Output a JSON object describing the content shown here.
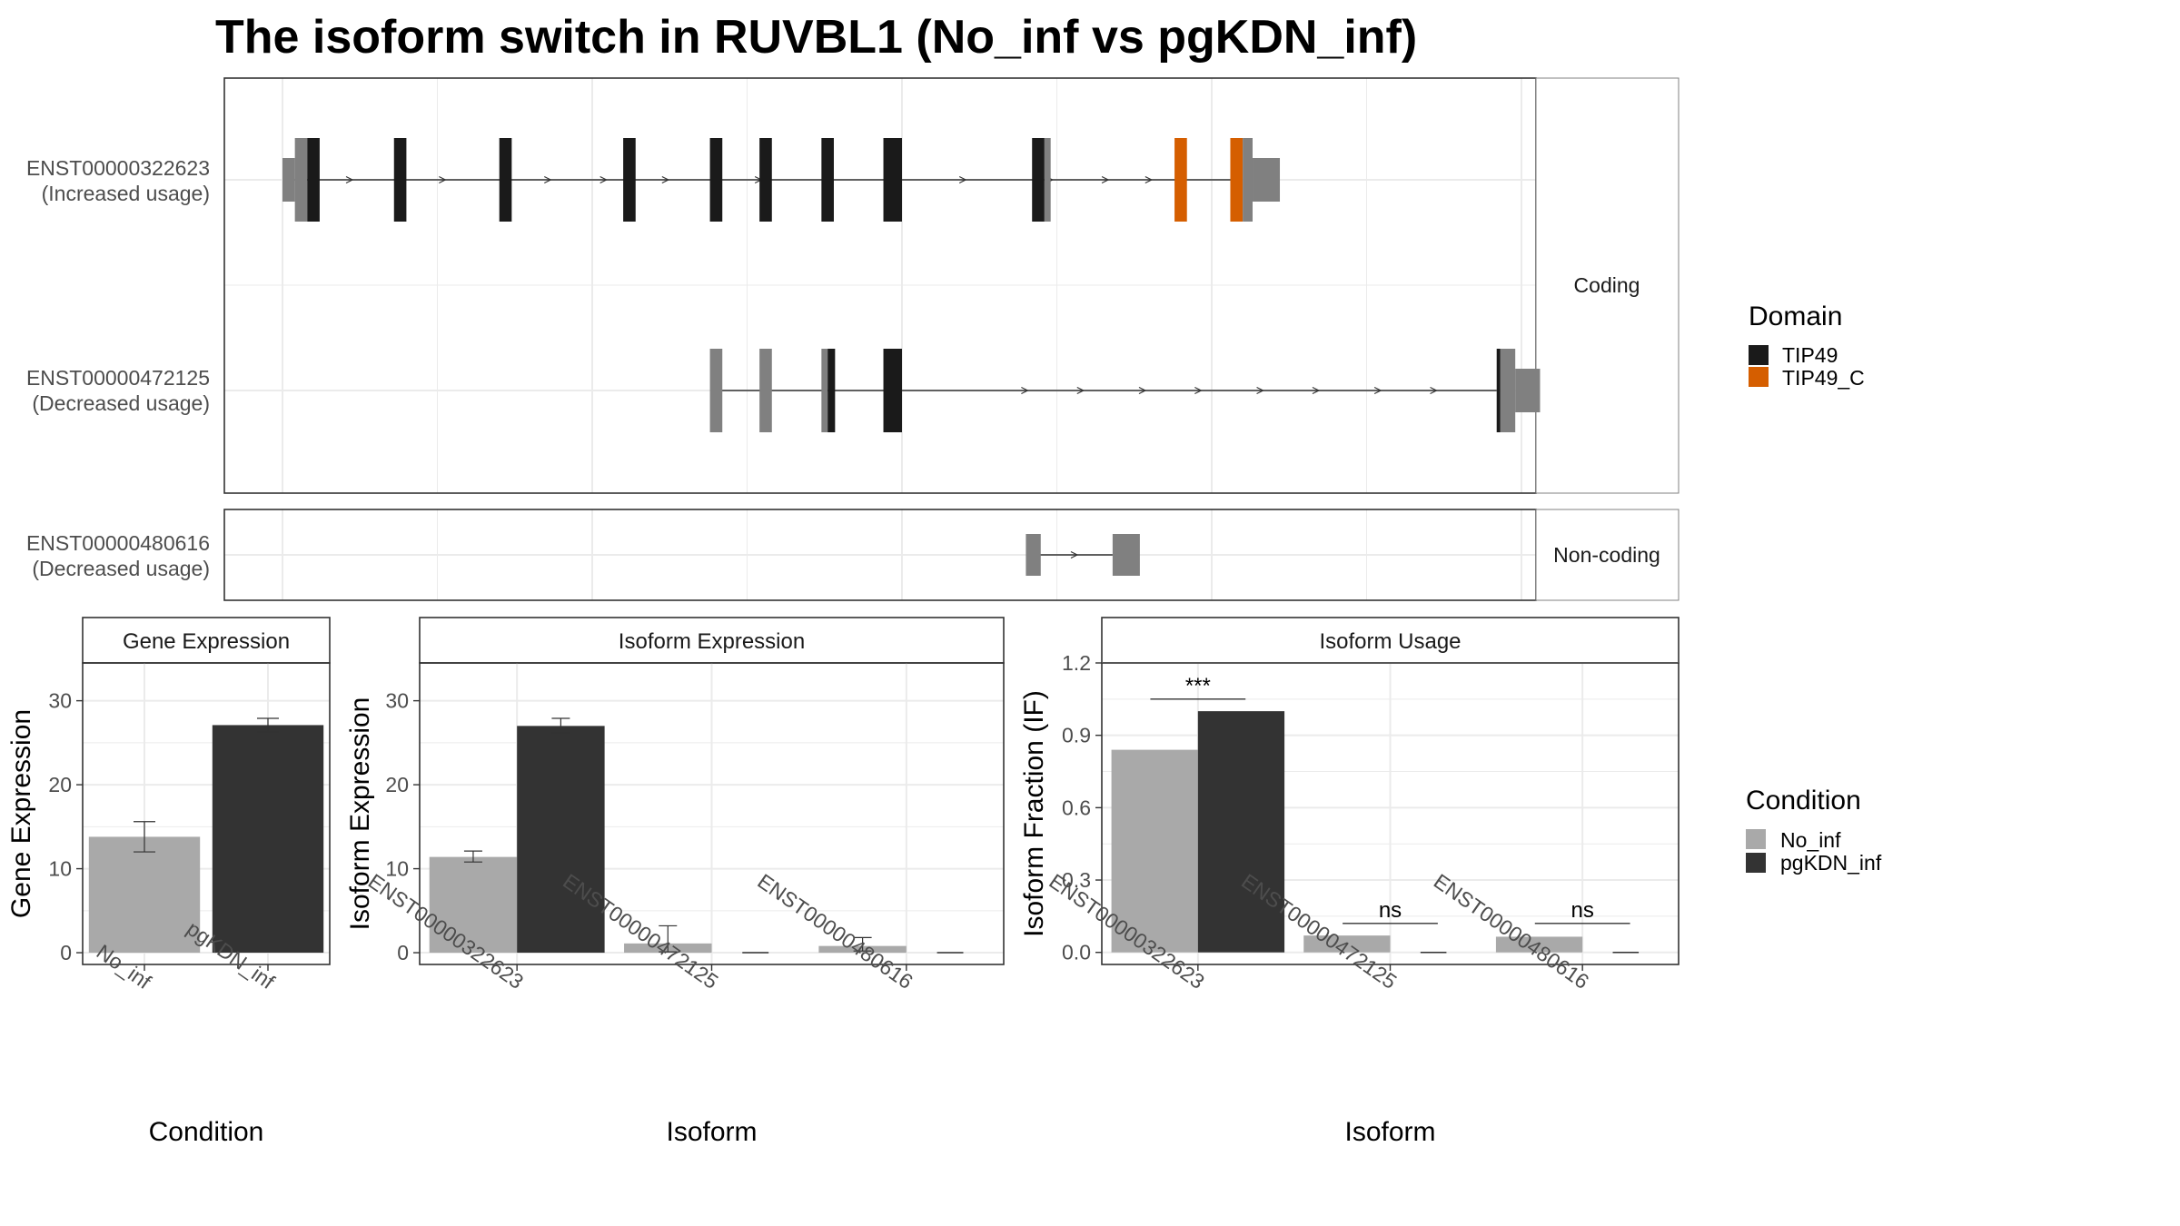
{
  "title": "The isoform switch in RUVBL1 (No_inf vs pgKDN_inf)",
  "colors": {
    "tip49": "#1a1a1a",
    "tip49_c": "#d55e00",
    "utr": "#808080",
    "no_inf": "#a9a9a9",
    "pgkdn_inf": "#333333",
    "grid": "#ebebeb",
    "strip_bg": "#ffffff",
    "panel_border": "#333333"
  },
  "structure": {
    "x_domain": [
      0,
      100
    ],
    "facets": [
      "Coding",
      "Non-coding"
    ],
    "transcripts": [
      {
        "id": "ENST00000322623",
        "usage": "(Increased usage)",
        "facet": "Coding",
        "intron": [
          1,
          77
        ],
        "arrows": [
          5.5,
          13,
          21.5,
          26,
          31,
          38.5,
          55,
          62,
          66.5,
          70
        ],
        "exons": [
          {
            "start": 0,
            "end": 1,
            "type": "utr5"
          },
          {
            "start": 1,
            "end": 2,
            "type": "utr"
          },
          {
            "start": 2,
            "end": 3,
            "type": "tip49"
          },
          {
            "start": 9,
            "end": 10,
            "type": "tip49"
          },
          {
            "start": 17.5,
            "end": 18.5,
            "type": "tip49"
          },
          {
            "start": 27.5,
            "end": 28.5,
            "type": "tip49"
          },
          {
            "start": 34.5,
            "end": 35.5,
            "type": "tip49"
          },
          {
            "start": 38.5,
            "end": 39.5,
            "type": "tip49"
          },
          {
            "start": 43.5,
            "end": 44.5,
            "type": "tip49"
          },
          {
            "start": 48.5,
            "end": 50,
            "type": "tip49"
          },
          {
            "start": 60.5,
            "end": 61.5,
            "type": "tip49"
          },
          {
            "start": 61.5,
            "end": 62,
            "type": "utr"
          },
          {
            "start": 72,
            "end": 73,
            "type": "tip49_c"
          },
          {
            "start": 76.5,
            "end": 77.5,
            "type": "tip49_c"
          },
          {
            "start": 77.5,
            "end": 78.3,
            "type": "utr"
          },
          {
            "start": 78.3,
            "end": 80.5,
            "type": "utr3"
          }
        ]
      },
      {
        "id": "ENST00000472125",
        "usage": "(Decreased usage)",
        "facet": "Coding",
        "intron": [
          35,
          98
        ],
        "arrows": [
          60,
          64.5,
          69.5,
          74,
          79,
          83.5,
          88.5,
          93
        ],
        "exons": [
          {
            "start": 34.5,
            "end": 35.5,
            "type": "utr"
          },
          {
            "start": 38.5,
            "end": 39.5,
            "type": "utr"
          },
          {
            "start": 43.5,
            "end": 44,
            "type": "utr"
          },
          {
            "start": 44,
            "end": 44.6,
            "type": "tip49"
          },
          {
            "start": 48.5,
            "end": 50,
            "type": "tip49"
          },
          {
            "start": 98,
            "end": 98.3,
            "type": "tip49"
          },
          {
            "start": 98.3,
            "end": 99.5,
            "type": "utr"
          },
          {
            "start": 99.5,
            "end": 101.5,
            "type": "utr3"
          }
        ]
      },
      {
        "id": "ENST00000480616",
        "usage": "(Decreased usage)",
        "facet": "Non-coding",
        "intron": [
          60.5,
          67
        ],
        "arrows": [
          64
        ],
        "exons": [
          {
            "start": 60,
            "end": 61.2,
            "type": "utr"
          },
          {
            "start": 67,
            "end": 69.2,
            "type": "utr"
          }
        ]
      }
    ]
  },
  "legend_domain": {
    "title": "Domain",
    "entries": [
      {
        "label": "TIP49",
        "color": "#1a1a1a"
      },
      {
        "label": "TIP49_C",
        "color": "#d55e00"
      }
    ]
  },
  "legend_condition": {
    "title": "Condition",
    "entries": [
      {
        "label": "No_inf",
        "color": "#a9a9a9"
      },
      {
        "label": "pgKDN_inf",
        "color": "#333333"
      }
    ]
  },
  "chart_data": [
    {
      "type": "bar",
      "strip": "Gene Expression",
      "xlabel": "Condition",
      "ylabel": "Gene Expression",
      "ylim": [
        -1.4,
        34.5
      ],
      "yticks": [
        0,
        10,
        20,
        30
      ],
      "categories": [
        "No_inf",
        "pgKDN_inf"
      ],
      "values": [
        13.8,
        27.1
      ],
      "errors": [
        [
          12.0,
          15.6
        ],
        [
          26.3,
          27.9
        ]
      ]
    },
    {
      "type": "bar",
      "strip": "Isoform Expression",
      "xlabel": "Isoform",
      "ylabel": "Isoform Expression",
      "ylim": [
        -1.4,
        34.5
      ],
      "yticks": [
        0,
        10,
        20,
        30
      ],
      "categories": [
        "ENST00000322623",
        "ENST00000472125",
        "ENST00000480616"
      ],
      "series": [
        {
          "name": "No_inf",
          "values": [
            11.4,
            1.1,
            0.8
          ],
          "errors": [
            [
              10.8,
              12.1
            ],
            [
              0.1,
              3.2
            ],
            [
              0.2,
              1.8
            ]
          ]
        },
        {
          "name": "pgKDN_inf",
          "values": [
            27.0,
            0.0,
            0.0
          ],
          "errors": [
            [
              26.2,
              27.9
            ],
            [
              0.0,
              0.0
            ],
            [
              0.0,
              0.0
            ]
          ]
        }
      ]
    },
    {
      "type": "bar",
      "strip": "Isoform Usage",
      "xlabel": "Isoform",
      "ylabel": "Isoform Fraction (IF)",
      "ylim": [
        -0.05,
        1.2
      ],
      "yticks": [
        0.0,
        0.3,
        0.6,
        0.9,
        1.2
      ],
      "ytick_labels": [
        "0.0",
        "0.3",
        "0.6",
        "0.9",
        "1.2"
      ],
      "categories": [
        "ENST00000322623",
        "ENST00000472125",
        "ENST00000480616"
      ],
      "series": [
        {
          "name": "No_inf",
          "values": [
            0.84,
            0.07,
            0.065
          ]
        },
        {
          "name": "pgKDN_inf",
          "values": [
            1.0,
            0.0,
            0.0
          ]
        }
      ],
      "significance": [
        {
          "label": "***",
          "y": 1.05
        },
        {
          "label": "ns",
          "y": 0.12
        },
        {
          "label": "ns",
          "y": 0.12
        }
      ]
    }
  ]
}
